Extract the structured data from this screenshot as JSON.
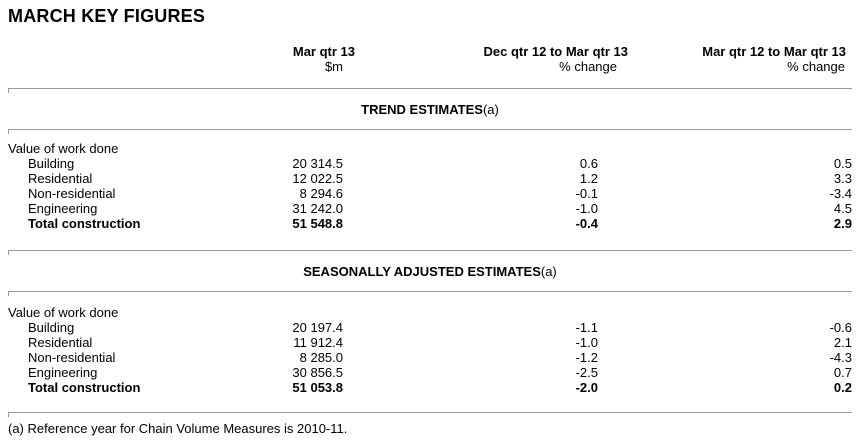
{
  "page_title": "MARCH KEY FIGURES",
  "colors": {
    "rule": "#999999",
    "text": "#000000",
    "background": "#ffffff"
  },
  "table": {
    "columns": [
      {
        "line1": "",
        "line2": ""
      },
      {
        "line1": "Mar qtr 13",
        "line2": "$m"
      },
      {
        "line1": "Dec qtr 12 to Mar qtr 13",
        "line2": "% change"
      },
      {
        "line1": "Mar qtr 12 to Mar qtr 13",
        "line2": "% change"
      }
    ],
    "sections": [
      {
        "heading": "TREND ESTIMATES",
        "heading_note": "(a)",
        "group_label": "Value of work done",
        "rows": [
          {
            "label": "Building",
            "value_m": "20 314.5",
            "qtr_change": "0.6",
            "year_change": "0.5"
          },
          {
            "label": "Residential",
            "value_m": "12 022.5",
            "qtr_change": "1.2",
            "year_change": "3.3"
          },
          {
            "label": "Non-residential",
            "value_m": "8 294.6",
            "qtr_change": "-0.1",
            "year_change": "-3.4"
          },
          {
            "label": "Engineering",
            "value_m": "31 242.0",
            "qtr_change": "-1.0",
            "year_change": "4.5"
          },
          {
            "label": "Total construction",
            "value_m": "51 548.8",
            "qtr_change": "-0.4",
            "year_change": "2.9"
          }
        ]
      },
      {
        "heading": "SEASONALLY ADJUSTED ESTIMATES",
        "heading_note": "(a)",
        "group_label": "Value of work done",
        "rows": [
          {
            "label": "Building",
            "value_m": "20 197.4",
            "qtr_change": "-1.1",
            "year_change": "-0.6"
          },
          {
            "label": "Residential",
            "value_m": "11 912.4",
            "qtr_change": "-1.0",
            "year_change": "2.1"
          },
          {
            "label": "Non-residential",
            "value_m": "8 285.0",
            "qtr_change": "-1.2",
            "year_change": "-4.3"
          },
          {
            "label": "Engineering",
            "value_m": "30 856.5",
            "qtr_change": "-2.5",
            "year_change": "0.7"
          },
          {
            "label": "Total construction",
            "value_m": "51 053.8",
            "qtr_change": "-2.0",
            "year_change": "0.2"
          }
        ]
      }
    ]
  },
  "footnote": "(a) Reference year for Chain Volume Measures is 2010-11."
}
